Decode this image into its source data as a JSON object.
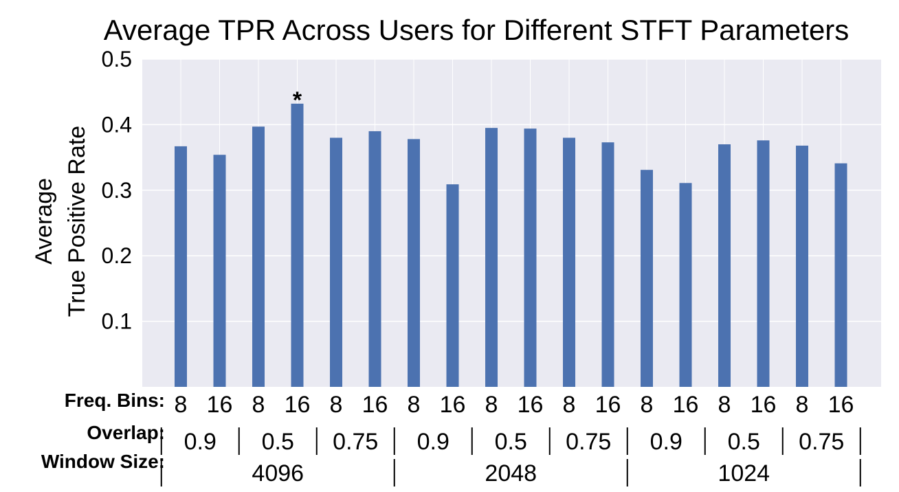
{
  "chart_data": {
    "type": "bar",
    "title": "Average TPR Across Users for Different STFT Parameters",
    "ylabel_lines": [
      "Average",
      "True Positive Rate"
    ],
    "ylim": [
      0,
      0.5
    ],
    "yticks": [
      "0.1",
      "0.2",
      "0.3",
      "0.4",
      "0.5"
    ],
    "grid": true,
    "bar_color": "#4c72b0",
    "background_color": "#eaeaf2",
    "values": [
      0.367,
      0.354,
      0.397,
      0.432,
      0.38,
      0.39,
      0.378,
      0.309,
      0.395,
      0.394,
      0.38,
      0.373,
      0.331,
      0.311,
      0.37,
      0.376,
      0.368,
      0.341
    ],
    "highlight_marker": "*",
    "highlight_index": 3,
    "freq_bins_label": "Freq. Bins:",
    "freq_bins": [
      "8",
      "16",
      "8",
      "16",
      "8",
      "16",
      "8",
      "16",
      "8",
      "16",
      "8",
      "16",
      "8",
      "16",
      "8",
      "16",
      "8",
      "16"
    ],
    "overlap_label": "Overlap:",
    "overlaps": [
      "0.9",
      "0.5",
      "0.75",
      "0.9",
      "0.5",
      "0.75",
      "0.9",
      "0.5",
      "0.75"
    ],
    "window_label": "Window Size:",
    "window_sizes": [
      "4096",
      "2048",
      "1024"
    ]
  }
}
